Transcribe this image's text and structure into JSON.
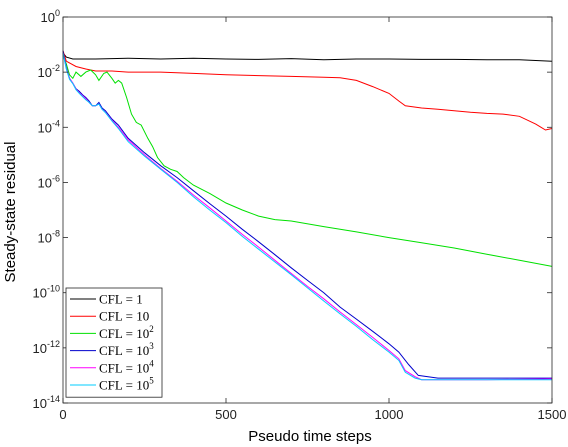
{
  "chart_data": {
    "type": "line",
    "xlabel": "Pseudo time steps",
    "ylabel": "Steady-state residual",
    "xlim": [
      0,
      1500
    ],
    "ylim_log10": [
      -14,
      0
    ],
    "yscale": "log",
    "x_ticks": [
      {
        "value": 0,
        "label": "0"
      },
      {
        "value": 500,
        "label": "500"
      },
      {
        "value": 1000,
        "label": "1000"
      },
      {
        "value": 1500,
        "label": "1500"
      }
    ],
    "y_ticks": [
      {
        "exp": 0,
        "base": "10",
        "sup": "0"
      },
      {
        "exp": -2,
        "base": "10",
        "sup": "-2"
      },
      {
        "exp": -4,
        "base": "10",
        "sup": "-4"
      },
      {
        "exp": -6,
        "base": "10",
        "sup": "-6"
      },
      {
        "exp": -8,
        "base": "10",
        "sup": "-8"
      },
      {
        "exp": -10,
        "base": "10",
        "sup": "-10"
      },
      {
        "exp": -12,
        "base": "10",
        "sup": "-12"
      },
      {
        "exp": -14,
        "base": "10",
        "sup": "-14"
      }
    ],
    "grid": false,
    "legend_position": "bottom-left",
    "series": [
      {
        "name": "CFL = 1",
        "label_text": "CFL = 1",
        "label_sup": "",
        "color": "#000000",
        "points": [
          [
            0,
            0.05
          ],
          [
            10,
            0.035
          ],
          [
            30,
            0.03
          ],
          [
            100,
            0.03
          ],
          [
            200,
            0.032
          ],
          [
            300,
            0.03
          ],
          [
            400,
            0.032
          ],
          [
            500,
            0.03
          ],
          [
            600,
            0.029
          ],
          [
            700,
            0.031
          ],
          [
            800,
            0.028
          ],
          [
            900,
            0.03
          ],
          [
            1000,
            0.03
          ],
          [
            1100,
            0.029
          ],
          [
            1200,
            0.029
          ],
          [
            1300,
            0.028
          ],
          [
            1400,
            0.028
          ],
          [
            1500,
            0.025
          ]
        ]
      },
      {
        "name": "CFL = 10",
        "label_text": "CFL = 10",
        "label_sup": "",
        "color": "#ff0000",
        "points": [
          [
            0,
            0.06
          ],
          [
            10,
            0.025
          ],
          [
            40,
            0.016
          ],
          [
            70,
            0.013
          ],
          [
            100,
            0.011
          ],
          [
            150,
            0.011
          ],
          [
            200,
            0.01
          ],
          [
            300,
            0.01
          ],
          [
            400,
            0.009
          ],
          [
            500,
            0.008
          ],
          [
            600,
            0.0075
          ],
          [
            700,
            0.007
          ],
          [
            800,
            0.0065
          ],
          [
            850,
            0.0063
          ],
          [
            900,
            0.005
          ],
          [
            950,
            0.003
          ],
          [
            1000,
            0.0017
          ],
          [
            1030,
            0.0009
          ],
          [
            1050,
            0.0006
          ],
          [
            1100,
            0.0005
          ],
          [
            1150,
            0.00045
          ],
          [
            1200,
            0.0004
          ],
          [
            1250,
            0.00035
          ],
          [
            1300,
            0.00032
          ],
          [
            1350,
            0.0003
          ],
          [
            1400,
            0.00025
          ],
          [
            1450,
            0.00013
          ],
          [
            1480,
            8e-05
          ],
          [
            1500,
            9e-05
          ]
        ]
      },
      {
        "name": "CFL = 10^2",
        "label_text": "CFL = 10",
        "label_sup": "2",
        "color": "#00e000",
        "points": [
          [
            0,
            0.04
          ],
          [
            10,
            0.02
          ],
          [
            20,
            0.008
          ],
          [
            30,
            0.006
          ],
          [
            40,
            0.01
          ],
          [
            55,
            0.007
          ],
          [
            70,
            0.01
          ],
          [
            85,
            0.012
          ],
          [
            100,
            0.008
          ],
          [
            110,
            0.005
          ],
          [
            125,
            0.009
          ],
          [
            135,
            0.01
          ],
          [
            150,
            0.006
          ],
          [
            160,
            0.004
          ],
          [
            170,
            0.005
          ],
          [
            180,
            0.004
          ],
          [
            195,
            0.0012
          ],
          [
            210,
            0.0003
          ],
          [
            225,
            0.00015
          ],
          [
            240,
            0.00012
          ],
          [
            260,
            4e-05
          ],
          [
            275,
            2e-05
          ],
          [
            290,
            8e-06
          ],
          [
            310,
            4e-06
          ],
          [
            330,
            3e-06
          ],
          [
            350,
            2.5e-06
          ],
          [
            370,
            1.5e-06
          ],
          [
            400,
            8e-07
          ],
          [
            450,
            4e-07
          ],
          [
            500,
            1.8e-07
          ],
          [
            550,
            1e-07
          ],
          [
            600,
            6e-08
          ],
          [
            650,
            4.5e-08
          ],
          [
            700,
            4e-08
          ],
          [
            800,
            2.5e-08
          ],
          [
            900,
            1.6e-08
          ],
          [
            1000,
            1e-08
          ],
          [
            1100,
            6.5e-09
          ],
          [
            1200,
            4.2e-09
          ],
          [
            1300,
            2.5e-09
          ],
          [
            1400,
            1.5e-09
          ],
          [
            1500,
            9e-10
          ]
        ]
      },
      {
        "name": "CFL = 10^3",
        "label_text": "CFL = 10",
        "label_sup": "3",
        "color": "#0000cc",
        "points": [
          [
            0,
            0.06
          ],
          [
            10,
            0.015
          ],
          [
            20,
            0.006
          ],
          [
            30,
            0.004
          ],
          [
            40,
            0.0025
          ],
          [
            50,
            0.002
          ],
          [
            60,
            0.0015
          ],
          [
            70,
            0.0012
          ],
          [
            80,
            0.0009
          ],
          [
            90,
            0.0006
          ],
          [
            100,
            0.0006
          ],
          [
            110,
            0.0008
          ],
          [
            120,
            0.0005
          ],
          [
            130,
            0.0004
          ],
          [
            150,
            0.0002
          ],
          [
            170,
            0.00012
          ],
          [
            200,
            4e-05
          ],
          [
            250,
            1.2e-05
          ],
          [
            300,
            4e-06
          ],
          [
            350,
            1.5e-06
          ],
          [
            400,
            5e-07
          ],
          [
            450,
            1.7e-07
          ],
          [
            500,
            6e-08
          ],
          [
            550,
            2e-08
          ],
          [
            600,
            7e-09
          ],
          [
            650,
            2.4e-09
          ],
          [
            700,
            8e-10
          ],
          [
            750,
            2.8e-10
          ],
          [
            800,
            1e-10
          ],
          [
            850,
            3e-11
          ],
          [
            900,
            1.1e-11
          ],
          [
            950,
            4e-12
          ],
          [
            1000,
            1.4e-12
          ],
          [
            1030,
            7e-13
          ],
          [
            1060,
            2.5e-13
          ],
          [
            1090,
            1e-13
          ],
          [
            1150,
            8e-14
          ],
          [
            1300,
            8e-14
          ],
          [
            1500,
            8e-14
          ]
        ]
      },
      {
        "name": "CFL = 10^4",
        "label_text": "CFL = 10",
        "label_sup": "4",
        "color": "#ff00ff",
        "points": [
          [
            0,
            0.05
          ],
          [
            10,
            0.014
          ],
          [
            20,
            0.006
          ],
          [
            30,
            0.004
          ],
          [
            40,
            0.0024
          ],
          [
            50,
            0.0018
          ],
          [
            60,
            0.0014
          ],
          [
            70,
            0.0011
          ],
          [
            80,
            0.0008
          ],
          [
            90,
            0.0006
          ],
          [
            100,
            0.0006
          ],
          [
            110,
            0.0007
          ],
          [
            120,
            0.00045
          ],
          [
            130,
            0.00035
          ],
          [
            150,
            0.00018
          ],
          [
            170,
            0.0001
          ],
          [
            200,
            3.5e-05
          ],
          [
            250,
            1e-05
          ],
          [
            300,
            3.2e-06
          ],
          [
            350,
            1.1e-06
          ],
          [
            400,
            3.5e-07
          ],
          [
            450,
            1.2e-07
          ],
          [
            500,
            4e-08
          ],
          [
            550,
            1.3e-08
          ],
          [
            600,
            4.5e-09
          ],
          [
            650,
            1.5e-09
          ],
          [
            700,
            5e-10
          ],
          [
            750,
            1.7e-10
          ],
          [
            800,
            6e-11
          ],
          [
            850,
            2e-11
          ],
          [
            900,
            7e-12
          ],
          [
            950,
            2.4e-12
          ],
          [
            1000,
            8e-13
          ],
          [
            1030,
            4e-13
          ],
          [
            1050,
            1.5e-13
          ],
          [
            1080,
            9e-14
          ],
          [
            1100,
            7e-14
          ],
          [
            1300,
            7e-14
          ],
          [
            1500,
            7.5e-14
          ]
        ]
      },
      {
        "name": "CFL = 10^5",
        "label_text": "CFL = 10",
        "label_sup": "5",
        "color": "#00ccff",
        "points": [
          [
            0,
            0.05
          ],
          [
            10,
            0.013
          ],
          [
            20,
            0.0055
          ],
          [
            30,
            0.0038
          ],
          [
            40,
            0.0023
          ],
          [
            50,
            0.0017
          ],
          [
            60,
            0.0013
          ],
          [
            70,
            0.001
          ],
          [
            80,
            0.0008
          ],
          [
            90,
            0.0006
          ],
          [
            100,
            0.0006
          ],
          [
            110,
            0.0007
          ],
          [
            120,
            0.00045
          ],
          [
            130,
            0.00034
          ],
          [
            150,
            0.00017
          ],
          [
            170,
            9e-05
          ],
          [
            200,
            3e-05
          ],
          [
            250,
            9e-06
          ],
          [
            300,
            3e-06
          ],
          [
            350,
            1e-06
          ],
          [
            400,
            3e-07
          ],
          [
            450,
            1e-07
          ],
          [
            500,
            3.5e-08
          ],
          [
            550,
            1.1e-08
          ],
          [
            600,
            3.8e-09
          ],
          [
            650,
            1.3e-09
          ],
          [
            700,
            4.5e-10
          ],
          [
            750,
            1.5e-10
          ],
          [
            800,
            5e-11
          ],
          [
            850,
            1.7e-11
          ],
          [
            900,
            6e-12
          ],
          [
            950,
            2e-12
          ],
          [
            1000,
            7e-13
          ],
          [
            1030,
            3.5e-13
          ],
          [
            1050,
            1.3e-13
          ],
          [
            1080,
            8e-14
          ],
          [
            1100,
            7e-14
          ],
          [
            1300,
            7e-14
          ],
          [
            1500,
            7e-14
          ]
        ]
      }
    ]
  }
}
